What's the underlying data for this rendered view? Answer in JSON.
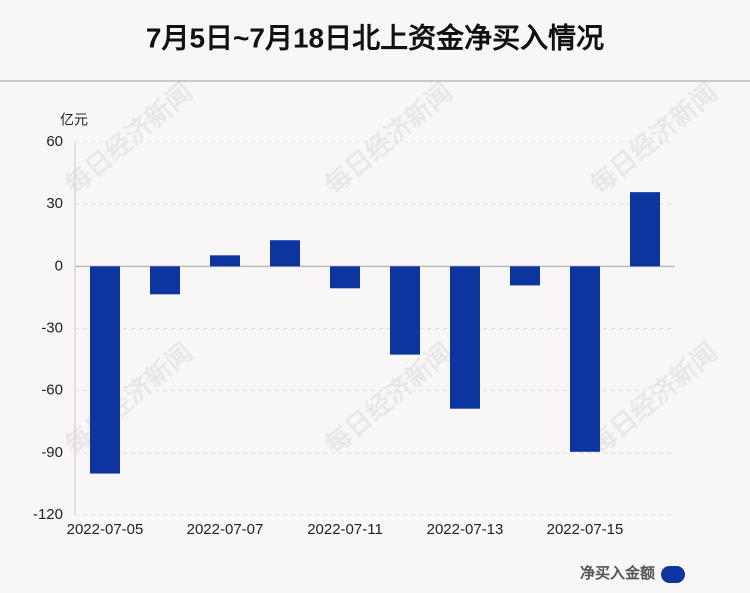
{
  "chart_data": {
    "type": "bar",
    "title": "7月5日~7月18日北上资金净买入情况",
    "y_unit": "亿元",
    "watermark": "每日经济新闻",
    "categories": [
      "2022-07-05",
      null,
      "2022-07-07",
      null,
      "2022-07-11",
      null,
      "2022-07-13",
      null,
      "2022-07-15",
      null
    ],
    "series": [
      {
        "name": "净买入金额",
        "color": "#0d35a0",
        "values": [
          -100,
          -13.5,
          5.3,
          12.6,
          -10.6,
          -42.6,
          -68.7,
          -9.2,
          -89.5,
          35.8
        ]
      }
    ],
    "ylim": [
      -120,
      60
    ],
    "yticks": [
      -120,
      -90,
      -60,
      -30,
      0,
      30,
      60
    ],
    "grid": true,
    "legend": "bottom-right"
  }
}
